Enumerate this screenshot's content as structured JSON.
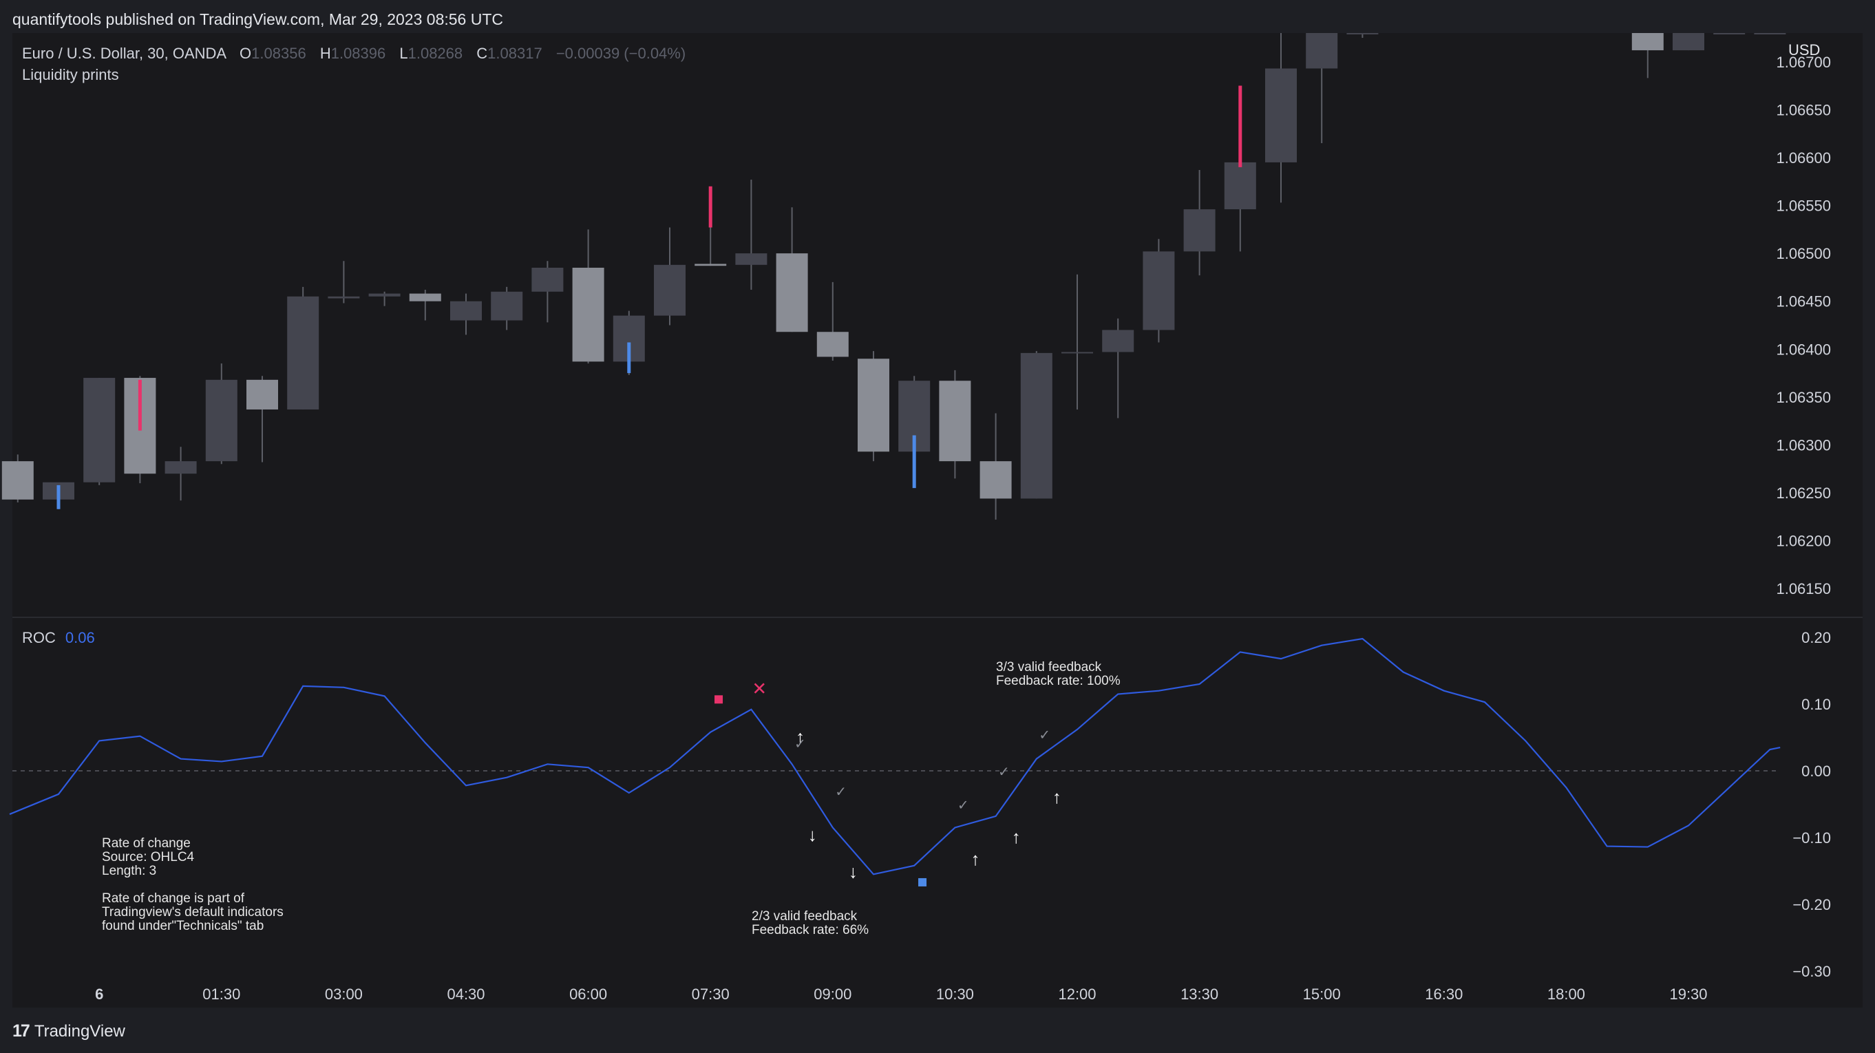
{
  "header": {
    "published_text": "quantifytools published on TradingView.com, Mar 29, 2023 08:56 UTC"
  },
  "legend": {
    "symbol": "Euro / U.S. Dollar, 30, OANDA",
    "o_label": "O",
    "o_value": "1.08356",
    "h_label": "H",
    "h_value": "1.08396",
    "l_label": "L",
    "l_value": "1.08268",
    "c_label": "C",
    "c_value": "1.08317",
    "change": "−0.00039 (−0.04%)",
    "indicator": "Liquidity prints",
    "currency": "USD"
  },
  "roc_legend": {
    "label": "ROC",
    "value": "0.06"
  },
  "notes": {
    "roc_info": "Rate of change\nSource: OHLC4\nLength: 3\n\nRate of change is part of\nTradingview's default indicators\nfound under\"Technicals\" tab",
    "feedback_a": "2/3 valid feedback\nFeedback rate: 66%",
    "feedback_b": "3/3 valid feedback\nFeedback rate: 100%"
  },
  "footer": {
    "brand": "TradingView",
    "logo": "17"
  },
  "colors": {
    "up": "#8a8d95",
    "down": "#44454f",
    "wick": "#5c5e66",
    "pink": "#e8336b",
    "blue": "#4d8ae8",
    "roc": "#2f5be0"
  },
  "chart_data": [
    {
      "type": "candlestick",
      "title": "Euro / U.S. Dollar, 30, OANDA",
      "ylim": [
        1.0612,
        1.0673
      ],
      "y_ticks": [
        "1.06150",
        "1.06200",
        "1.06250",
        "1.06300",
        "1.06350",
        "1.06400",
        "1.06450",
        "1.06500",
        "1.06550",
        "1.06600",
        "1.06650",
        "1.06700"
      ],
      "x_ticks": [
        {
          "i": 2,
          "label": "6"
        },
        {
          "i": 5,
          "label": "01:30"
        },
        {
          "i": 8,
          "label": "03:00"
        },
        {
          "i": 11,
          "label": "04:30"
        },
        {
          "i": 14,
          "label": "06:00"
        },
        {
          "i": 17,
          "label": "07:30"
        },
        {
          "i": 20,
          "label": "09:00"
        },
        {
          "i": 23,
          "label": "10:30"
        },
        {
          "i": 26,
          "label": "12:00"
        },
        {
          "i": 29,
          "label": "13:30"
        },
        {
          "i": 32,
          "label": "15:00"
        },
        {
          "i": 35,
          "label": "16:30"
        },
        {
          "i": 38,
          "label": "18:00"
        },
        {
          "i": 41,
          "label": "19:30"
        }
      ],
      "candles": [
        {
          "i": 0,
          "o": 1.06283,
          "h": 1.0629,
          "l": 1.0624,
          "c": 1.06243,
          "color": "up"
        },
        {
          "i": 1,
          "o": 1.06243,
          "h": 1.06258,
          "l": 1.06233,
          "c": 1.06261,
          "color": "down"
        },
        {
          "i": 2,
          "o": 1.06261,
          "h": 1.0637,
          "l": 1.06258,
          "c": 1.0637,
          "color": "down"
        },
        {
          "i": 3,
          "o": 1.0637,
          "h": 1.06372,
          "l": 1.0626,
          "c": 1.0627,
          "color": "up"
        },
        {
          "i": 4,
          "o": 1.0627,
          "h": 1.06298,
          "l": 1.06242,
          "c": 1.06283,
          "color": "down"
        },
        {
          "i": 5,
          "o": 1.06283,
          "h": 1.06385,
          "l": 1.0628,
          "c": 1.06368,
          "color": "down"
        },
        {
          "i": 6,
          "o": 1.06368,
          "h": 1.06372,
          "l": 1.06282,
          "c": 1.06337,
          "color": "up"
        },
        {
          "i": 7,
          "o": 1.06337,
          "h": 1.06465,
          "l": 1.06337,
          "c": 1.06455,
          "color": "down"
        },
        {
          "i": 8,
          "o": 1.06453,
          "h": 1.06492,
          "l": 1.06448,
          "c": 1.06455,
          "color": "down"
        },
        {
          "i": 9,
          "o": 1.06455,
          "h": 1.0646,
          "l": 1.06445,
          "c": 1.06458,
          "color": "down"
        },
        {
          "i": 10,
          "o": 1.06458,
          "h": 1.06462,
          "l": 1.0643,
          "c": 1.0645,
          "color": "up"
        },
        {
          "i": 11,
          "o": 1.0643,
          "h": 1.06458,
          "l": 1.06415,
          "c": 1.0645,
          "color": "down"
        },
        {
          "i": 12,
          "o": 1.0643,
          "h": 1.06465,
          "l": 1.0642,
          "c": 1.0646,
          "color": "down"
        },
        {
          "i": 13,
          "o": 1.0646,
          "h": 1.06492,
          "l": 1.06428,
          "c": 1.06485,
          "color": "down"
        },
        {
          "i": 14,
          "o": 1.06485,
          "h": 1.06525,
          "l": 1.06385,
          "c": 1.06387,
          "color": "up"
        },
        {
          "i": 15,
          "o": 1.06387,
          "h": 1.0644,
          "l": 1.06373,
          "c": 1.06435,
          "color": "down"
        },
        {
          "i": 16,
          "o": 1.06435,
          "h": 1.06527,
          "l": 1.06425,
          "c": 1.06488,
          "color": "down"
        },
        {
          "i": 17,
          "o": 1.06487,
          "h": 1.06528,
          "l": 1.06487,
          "c": 1.06489,
          "color": "up"
        },
        {
          "i": 18,
          "o": 1.06488,
          "h": 1.06577,
          "l": 1.06462,
          "c": 1.065,
          "color": "down"
        },
        {
          "i": 19,
          "o": 1.065,
          "h": 1.06548,
          "l": 1.06418,
          "c": 1.06418,
          "color": "up"
        },
        {
          "i": 20,
          "o": 1.06418,
          "h": 1.0647,
          "l": 1.06388,
          "c": 1.06392,
          "color": "up"
        },
        {
          "i": 21,
          "o": 1.0639,
          "h": 1.06398,
          "l": 1.06283,
          "c": 1.06293,
          "color": "up"
        },
        {
          "i": 22,
          "o": 1.06293,
          "h": 1.06372,
          "l": 1.0628,
          "c": 1.06367,
          "color": "down"
        },
        {
          "i": 23,
          "o": 1.06367,
          "h": 1.06378,
          "l": 1.06265,
          "c": 1.06283,
          "color": "up"
        },
        {
          "i": 24,
          "o": 1.06283,
          "h": 1.06333,
          "l": 1.06222,
          "c": 1.06244,
          "color": "up"
        },
        {
          "i": 25,
          "o": 1.06244,
          "h": 1.06398,
          "l": 1.06244,
          "c": 1.06396,
          "color": "down"
        },
        {
          "i": 26,
          "o": 1.06396,
          "h": 1.06478,
          "l": 1.06337,
          "c": 1.06397,
          "color": "down"
        },
        {
          "i": 27,
          "o": 1.06397,
          "h": 1.06432,
          "l": 1.06328,
          "c": 1.0642,
          "color": "down"
        },
        {
          "i": 28,
          "o": 1.0642,
          "h": 1.06515,
          "l": 1.06407,
          "c": 1.06502,
          "color": "down"
        },
        {
          "i": 29,
          "o": 1.06502,
          "h": 1.06587,
          "l": 1.06477,
          "c": 1.06546,
          "color": "down"
        },
        {
          "i": 30,
          "o": 1.06546,
          "h": 1.06628,
          "l": 1.06502,
          "c": 1.06595,
          "color": "down"
        },
        {
          "i": 31,
          "o": 1.06595,
          "h": 1.0673,
          "l": 1.06553,
          "c": 1.06693,
          "color": "down"
        },
        {
          "i": 32,
          "o": 1.06693,
          "h": 1.0674,
          "l": 1.06615,
          "c": 1.06738,
          "color": "down"
        },
        {
          "i": 33,
          "o": 1.06738,
          "h": 1.0676,
          "l": 1.06725,
          "c": 1.0676,
          "color": "down"
        },
        {
          "i": 40,
          "o": 1.0676,
          "h": 1.0676,
          "l": 1.06683,
          "c": 1.06712,
          "color": "up"
        },
        {
          "i": 41,
          "o": 1.06712,
          "h": 1.0676,
          "l": 1.06712,
          "c": 1.0676,
          "color": "down"
        },
        {
          "i": 42,
          "o": 1.0674,
          "h": 1.0676,
          "l": 1.0673,
          "c": 1.0675,
          "color": "down"
        },
        {
          "i": 43,
          "o": 1.0674,
          "h": 1.0676,
          "l": 1.0673,
          "c": 1.0675,
          "color": "down"
        }
      ],
      "liquidity_prints": [
        {
          "i": 1,
          "from": 1.06258,
          "to": 1.06233,
          "color": "blue"
        },
        {
          "i": 3,
          "from": 1.06368,
          "to": 1.06315,
          "color": "pink"
        },
        {
          "i": 15,
          "from": 1.06407,
          "to": 1.06375,
          "color": "blue"
        },
        {
          "i": 17,
          "from": 1.0657,
          "to": 1.06527,
          "color": "pink"
        },
        {
          "i": 22,
          "from": 1.0631,
          "to": 1.06255,
          "color": "blue"
        },
        {
          "i": 30,
          "from": 1.06675,
          "to": 1.0659,
          "color": "pink"
        }
      ]
    },
    {
      "type": "line",
      "title": "ROC",
      "ylim": [
        -0.33,
        0.23
      ],
      "y_ticks": [
        "0.20",
        "0.10",
        "0.00",
        "−0.10",
        "−0.20",
        "−0.30"
      ],
      "series": [
        {
          "name": "ROC",
          "x": [
            -0.2,
            1,
            2,
            3,
            4,
            5,
            6,
            7,
            8,
            9,
            10,
            11,
            12,
            13,
            14,
            15,
            16,
            17,
            18,
            19,
            20,
            21,
            22,
            23,
            24,
            25,
            26,
            27,
            28,
            29,
            30,
            31,
            32,
            33,
            34,
            35,
            36,
            37,
            38,
            39,
            40,
            41,
            42,
            43,
            43.25
          ],
          "values": [
            -0.065,
            -0.035,
            0.045,
            0.052,
            0.018,
            0.014,
            0.022,
            0.127,
            0.125,
            0.112,
            0.042,
            -0.022,
            -0.01,
            0.01,
            0.005,
            -0.033,
            0.005,
            0.058,
            0.092,
            0.01,
            -0.085,
            -0.155,
            -0.142,
            -0.085,
            -0.068,
            0.018,
            0.062,
            0.115,
            0.12,
            0.13,
            0.178,
            0.168,
            0.188,
            0.198,
            0.148,
            0.12,
            0.103,
            0.045,
            -0.025,
            -0.113,
            -0.114,
            -0.082,
            -0.025,
            0.032,
            0.035
          ]
        }
      ],
      "signals": [
        {
          "x": 17.2,
          "v": 0.107,
          "kind": "square",
          "color": "pink"
        },
        {
          "x": 22.2,
          "v": -0.167,
          "kind": "square",
          "color": "blue"
        }
      ],
      "marks": [
        {
          "x": 18.2,
          "v": 0.122,
          "symbol": "✕",
          "color": "pink"
        },
        {
          "x": 19.2,
          "v": 0.05,
          "symbol": "↑",
          "color": "white"
        },
        {
          "x": 19.2,
          "v": 0.042,
          "symbol": "✓",
          "color": "gray"
        },
        {
          "x": 20.2,
          "v": -0.03,
          "symbol": "✓",
          "color": "gray"
        },
        {
          "x": 19.5,
          "v": -0.097,
          "symbol": "↓",
          "color": "white"
        },
        {
          "x": 20.5,
          "v": -0.152,
          "symbol": "↓",
          "color": "white"
        },
        {
          "x": 23.2,
          "v": -0.05,
          "symbol": "✓",
          "color": "gray"
        },
        {
          "x": 24.2,
          "v": 0.0,
          "symbol": "✓",
          "color": "gray"
        },
        {
          "x": 25.2,
          "v": 0.055,
          "symbol": "✓",
          "color": "gray"
        },
        {
          "x": 23.5,
          "v": -0.133,
          "symbol": "↑",
          "color": "white"
        },
        {
          "x": 24.5,
          "v": -0.1,
          "symbol": "↑",
          "color": "white"
        },
        {
          "x": 25.5,
          "v": -0.04,
          "symbol": "↑",
          "color": "white"
        }
      ]
    }
  ]
}
